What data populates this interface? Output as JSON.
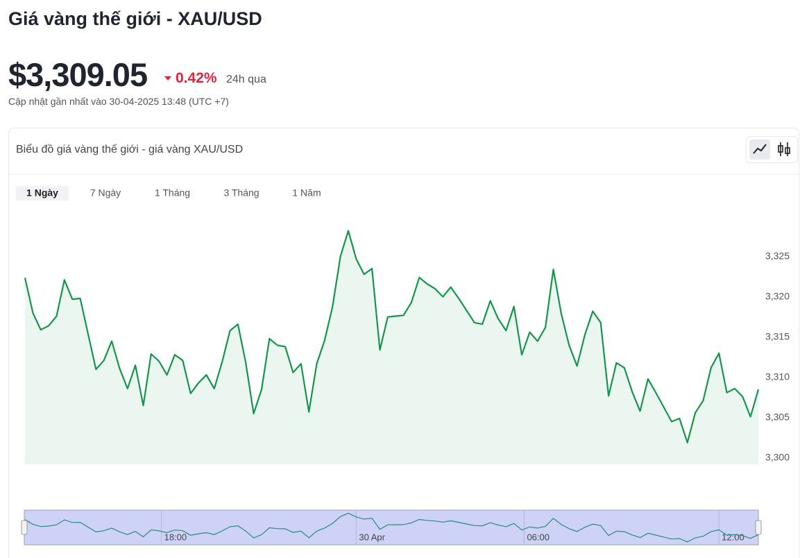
{
  "header": {
    "title": "Giá vàng thế giới - XAU/USD",
    "price": "$3,309.05",
    "change": "0.42%",
    "change_period": "24h qua",
    "updated": "Cập nhật gần nhất vào 30-04-2025 13:48 (UTC +7)"
  },
  "card": {
    "title": "Biểu đồ giá vàng thế giới - giá vàng XAU/USD",
    "tabs": [
      "1 Ngày",
      "7 Ngày",
      "1 Tháng",
      "3 Tháng",
      "1 Năm"
    ],
    "active_tab": 0
  },
  "chart_data": {
    "type": "line",
    "color": "#14964a",
    "area": true,
    "fill_color": "#eaf6ef",
    "values": [
      3322.35,
      3318.0,
      3315.9,
      3316.4,
      3317.6,
      3322.1,
      3319.7,
      3319.8,
      3315.4,
      3311.0,
      3312.1,
      3314.5,
      3311.1,
      3308.6,
      3311.5,
      3306.5,
      3312.9,
      3312.0,
      3310.3,
      3312.8,
      3312.1,
      3308.0,
      3309.3,
      3310.3,
      3308.6,
      3311.9,
      3315.8,
      3316.6,
      3311.8,
      3305.5,
      3308.5,
      3314.8,
      3314.0,
      3313.8,
      3310.6,
      3311.7,
      3305.7,
      3311.7,
      3314.6,
      3318.8,
      3325.0,
      3328.2,
      3324.7,
      3322.8,
      3323.5,
      3313.4,
      3317.5,
      3317.6,
      3317.7,
      3319.3,
      3322.4,
      3321.6,
      3321.0,
      3320.0,
      3321.2,
      3319.8,
      3318.3,
      3316.8,
      3316.6,
      3319.5,
      3317.3,
      3315.8,
      3318.8,
      3312.8,
      3315.6,
      3314.5,
      3316.2,
      3323.4,
      3317.9,
      3314.0,
      3311.4,
      3315.3,
      3318.2,
      3316.8,
      3307.7,
      3311.8,
      3311.2,
      3308.2,
      3305.8,
      3309.8,
      3308.1,
      3306.3,
      3304.5,
      3304.9,
      3301.9,
      3305.6,
      3307.1,
      3311.2,
      3313.0,
      3308.1,
      3308.6,
      3307.6,
      3305.1,
      3308.5
    ],
    "ylim": [
      3299.2,
      3331
    ],
    "yticks": [
      {
        "value": 3300,
        "label": "3,300"
      },
      {
        "value": 3305,
        "label": "3,305"
      },
      {
        "value": 3310,
        "label": "3,310"
      },
      {
        "value": 3315,
        "label": "3,315"
      },
      {
        "value": 3320,
        "label": "3,320"
      },
      {
        "value": 3325,
        "label": "3,325"
      }
    ],
    "navigator_labels": [
      "18:00",
      "30 Apr",
      "06:00",
      "12:00"
    ]
  }
}
